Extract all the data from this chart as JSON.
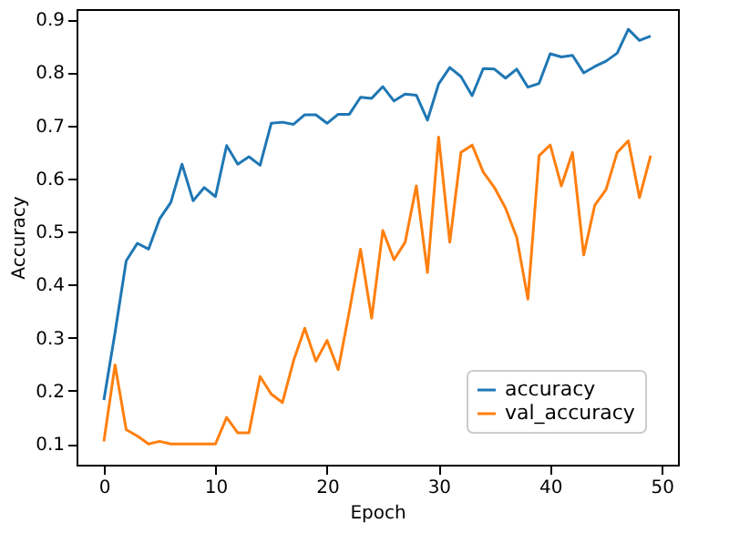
{
  "chart_data": {
    "type": "line",
    "xlabel": "Epoch",
    "ylabel": "Accuracy",
    "x": [
      0,
      1,
      2,
      3,
      4,
      5,
      6,
      7,
      8,
      9,
      10,
      11,
      12,
      13,
      14,
      15,
      16,
      17,
      18,
      19,
      20,
      21,
      22,
      23,
      24,
      25,
      26,
      27,
      28,
      29,
      30,
      31,
      32,
      33,
      34,
      35,
      36,
      37,
      38,
      39,
      40,
      41,
      42,
      43,
      44,
      45,
      46,
      47,
      48,
      49
    ],
    "series": [
      {
        "name": "accuracy",
        "color": "#1f77b4",
        "values": [
          0.183,
          0.31,
          0.445,
          0.478,
          0.467,
          0.524,
          0.555,
          0.627,
          0.558,
          0.583,
          0.566,
          0.662,
          0.627,
          0.641,
          0.625,
          0.704,
          0.706,
          0.702,
          0.72,
          0.72,
          0.704,
          0.721,
          0.721,
          0.753,
          0.751,
          0.773,
          0.746,
          0.759,
          0.757,
          0.71,
          0.778,
          0.809,
          0.792,
          0.756,
          0.807,
          0.806,
          0.789,
          0.806,
          0.772,
          0.779,
          0.835,
          0.829,
          0.832,
          0.799,
          0.811,
          0.821,
          0.836,
          0.881,
          0.86,
          0.868
        ]
      },
      {
        "name": "val_accuracy",
        "color": "#ff7f0e",
        "values": [
          0.105,
          0.249,
          0.127,
          0.115,
          0.1,
          0.105,
          0.1,
          0.1,
          0.1,
          0.1,
          0.1,
          0.15,
          0.121,
          0.121,
          0.227,
          0.194,
          0.178,
          0.257,
          0.318,
          0.256,
          0.295,
          0.24,
          0.35,
          0.467,
          0.337,
          0.502,
          0.447,
          0.48,
          0.586,
          0.423,
          0.678,
          0.48,
          0.649,
          0.663,
          0.612,
          0.583,
          0.544,
          0.489,
          0.373,
          0.643,
          0.663,
          0.586,
          0.649,
          0.456,
          0.55,
          0.579,
          0.649,
          0.671,
          0.564,
          0.643
        ]
      }
    ],
    "xlim": [
      -2.45,
      51.45
    ],
    "ylim": [
      0.061,
      0.919
    ],
    "xticks": [
      0,
      10,
      20,
      30,
      40,
      50
    ],
    "yticks": [
      0.1,
      0.2,
      0.3,
      0.4,
      0.5,
      0.6,
      0.7,
      0.8,
      0.9
    ],
    "legend": "bottom right",
    "grid": false,
    "marker": "none",
    "line_style": "solid"
  }
}
